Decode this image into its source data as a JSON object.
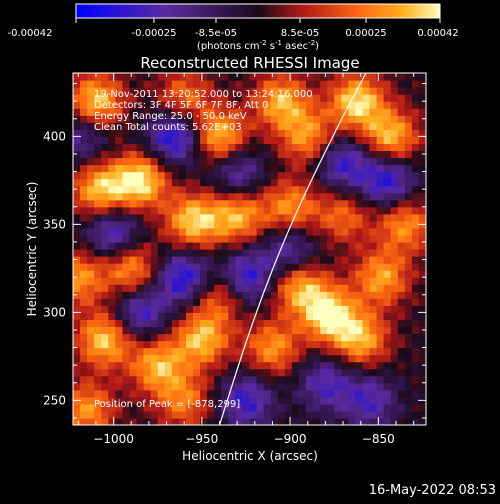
{
  "colorbar": {
    "tick_labels": [
      "-0.00042",
      "-0.00025",
      "-8.5e-05",
      "8.5e-05",
      "0.00025",
      "0.00042"
    ],
    "units_label": "(photons cm",
    "units_sup1": "-2",
    "units_s": " s",
    "units_sup2": "-1",
    "units_asec": " asec",
    "units_sup3": "-2",
    "units_close": ")",
    "range": [
      -0.00042,
      0.00042
    ],
    "colors": [
      "#0000ff",
      "#5a2a9e",
      "#1a0a1a",
      "#b01818",
      "#ff6a10",
      "#ffb020",
      "#ffffc0"
    ]
  },
  "plot": {
    "title": "Reconstructed RHESSI Image",
    "info_lines": [
      "19-Nov-2011 13:20:52.000 to 13:24:16.000",
      "Detectors: 3F 4F 5F 6F 7F 8F, Att 0",
      "Energy Range: 25.0 - 50.0 keV",
      "Clean     Total counts: 5.62E+03"
    ],
    "peak_label": "Position of Peak = [-878,299]",
    "timestamp": "16-May-2022 08:53"
  },
  "chart_data": {
    "type": "heatmap",
    "xlabel": "Heliocentric X (arcsec)",
    "ylabel": "Heliocentric Y (arcsec)",
    "xlim": [
      -1023,
      -823
    ],
    "ylim": [
      236,
      436
    ],
    "x_ticks": [
      -1000,
      -950,
      -900,
      -850
    ],
    "y_ticks": [
      250,
      300,
      350,
      400
    ],
    "x_tick_labels": [
      "−1000",
      "−950",
      "−900",
      "−850"
    ],
    "y_tick_labels": [
      "250",
      "300",
      "350",
      "400"
    ],
    "peak": [
      -878,
      299
    ],
    "limb_curve": [
      [
        -940,
        236
      ],
      [
        -921,
        296
      ],
      [
        -900,
        350
      ],
      [
        -873,
        406
      ],
      [
        -857,
        436
      ]
    ],
    "hot_spots": [
      {
        "x": -1010,
        "y": 420,
        "v": 0.9
      },
      {
        "x": -960,
        "y": 422,
        "v": 0.6
      },
      {
        "x": -940,
        "y": 400,
        "v": 0.9
      },
      {
        "x": -905,
        "y": 420,
        "v": 0.8
      },
      {
        "x": -890,
        "y": 400,
        "v": 0.7
      },
      {
        "x": -862,
        "y": 420,
        "v": 0.95
      },
      {
        "x": -843,
        "y": 400,
        "v": 0.85
      },
      {
        "x": -985,
        "y": 375,
        "v": 1.0
      },
      {
        "x": -1008,
        "y": 370,
        "v": 0.85
      },
      {
        "x": -955,
        "y": 352,
        "v": 0.9
      },
      {
        "x": -930,
        "y": 355,
        "v": 0.8
      },
      {
        "x": -900,
        "y": 360,
        "v": 0.7
      },
      {
        "x": -1020,
        "y": 320,
        "v": 0.7
      },
      {
        "x": -990,
        "y": 325,
        "v": 0.75
      },
      {
        "x": -1005,
        "y": 285,
        "v": 0.9
      },
      {
        "x": -975,
        "y": 270,
        "v": 0.8
      },
      {
        "x": -950,
        "y": 285,
        "v": 0.85
      },
      {
        "x": -940,
        "y": 310,
        "v": 0.6
      },
      {
        "x": -895,
        "y": 315,
        "v": 0.8
      },
      {
        "x": -878,
        "y": 299,
        "v": 1.0
      },
      {
        "x": -860,
        "y": 285,
        "v": 0.8
      },
      {
        "x": -848,
        "y": 320,
        "v": 0.75
      },
      {
        "x": -910,
        "y": 280,
        "v": 0.7
      },
      {
        "x": -1015,
        "y": 245,
        "v": 0.7
      },
      {
        "x": -960,
        "y": 250,
        "v": 0.6
      },
      {
        "x": -835,
        "y": 350,
        "v": 0.7
      },
      {
        "x": -870,
        "y": 355,
        "v": 0.55
      }
    ],
    "cold_spots": [
      {
        "x": -965,
        "y": 400,
        "v": -0.9
      },
      {
        "x": -1000,
        "y": 345,
        "v": -0.7
      },
      {
        "x": -960,
        "y": 320,
        "v": -0.85
      },
      {
        "x": -925,
        "y": 320,
        "v": -0.8
      },
      {
        "x": -900,
        "y": 335,
        "v": -0.6
      },
      {
        "x": -870,
        "y": 385,
        "v": -0.7
      },
      {
        "x": -845,
        "y": 375,
        "v": -0.8
      },
      {
        "x": -855,
        "y": 250,
        "v": -0.6
      },
      {
        "x": -925,
        "y": 250,
        "v": -0.7
      },
      {
        "x": -985,
        "y": 300,
        "v": -0.7
      },
      {
        "x": -880,
        "y": 260,
        "v": -0.6
      },
      {
        "x": -1018,
        "y": 400,
        "v": -0.5
      },
      {
        "x": -930,
        "y": 380,
        "v": -0.6
      }
    ]
  }
}
